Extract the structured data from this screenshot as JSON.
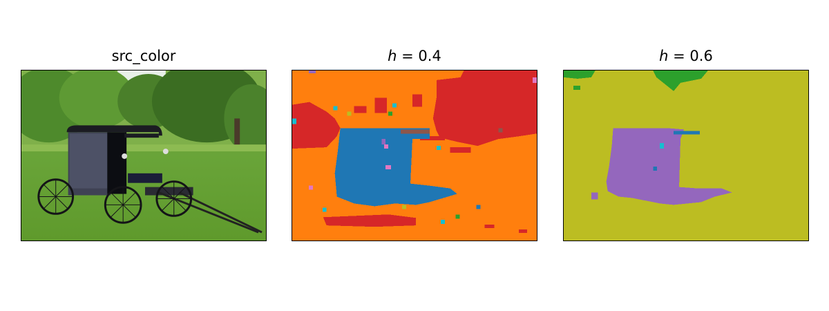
{
  "panels": [
    {
      "title": "src_color"
    },
    {
      "title_var": "h",
      "title_rest": " = 0.4"
    },
    {
      "title_var": "h",
      "title_rest": " = 0.6"
    }
  ],
  "colors": {
    "orange": "#ff7f0e",
    "red": "#d62728",
    "blue": "#1f77b4",
    "green": "#2ca02c",
    "purple": "#9467bd",
    "olive": "#bcbd22",
    "cyan": "#17becf",
    "pink": "#e377c2",
    "brown": "#8c564b"
  }
}
